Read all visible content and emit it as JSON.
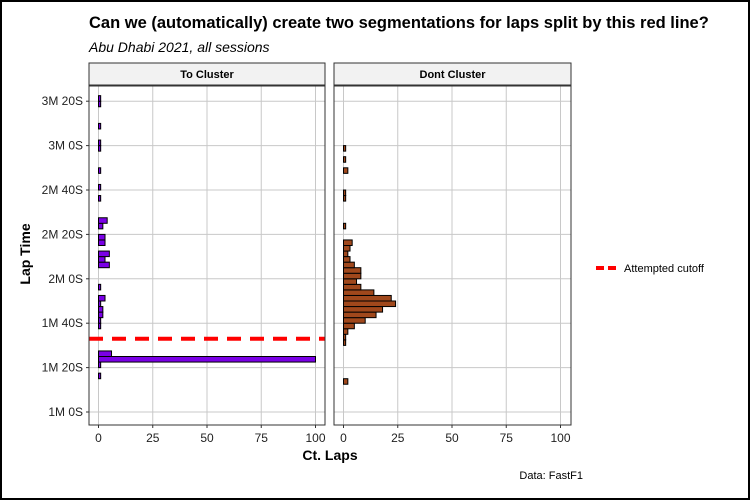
{
  "chart_data": {
    "type": "bar",
    "orientation": "horizontal histogram (faceted)",
    "title": "Can we (automatically) create two segmentations for laps split by this red line?",
    "subtitle": "Abu Dhabi 2021, all sessions",
    "xlabel": "Ct. Laps",
    "ylabel": "Lap Time",
    "caption": "Data: FastF1",
    "xlim": [
      0,
      100
    ],
    "x_ticks": [
      0,
      25,
      50,
      75,
      100
    ],
    "ylim_seconds": [
      60,
      215
    ],
    "y_ticks": [
      {
        "seconds": 60,
        "label": "1M 0S"
      },
      {
        "seconds": 80,
        "label": "1M 20S"
      },
      {
        "seconds": 100,
        "label": "1M 40S"
      },
      {
        "seconds": 120,
        "label": "2M 0S"
      },
      {
        "seconds": 140,
        "label": "2M 20S"
      },
      {
        "seconds": 160,
        "label": "2M 40S"
      },
      {
        "seconds": 180,
        "label": "3M 0S"
      },
      {
        "seconds": 200,
        "label": "3M 20S"
      }
    ],
    "bin_width_seconds": 2.5,
    "cutoff": {
      "seconds": 93,
      "label": "Attempted cutoff",
      "color": "#ff0000"
    },
    "legend_position": "right",
    "facets": [
      {
        "name": "To Cluster",
        "color": "#7a00e6",
        "bins": [
          {
            "start": 75,
            "count": 1
          },
          {
            "start": 80,
            "count": 1
          },
          {
            "start": 82.5,
            "count": 100
          },
          {
            "start": 85,
            "count": 6
          },
          {
            "start": 97.5,
            "count": 1
          },
          {
            "start": 100,
            "count": 1
          },
          {
            "start": 102.5,
            "count": 2
          },
          {
            "start": 105,
            "count": 2
          },
          {
            "start": 107.5,
            "count": 1
          },
          {
            "start": 110,
            "count": 3
          },
          {
            "start": 115,
            "count": 1
          },
          {
            "start": 125,
            "count": 5
          },
          {
            "start": 127.5,
            "count": 3
          },
          {
            "start": 130,
            "count": 5
          },
          {
            "start": 135,
            "count": 3
          },
          {
            "start": 137.5,
            "count": 3
          },
          {
            "start": 142.5,
            "count": 2
          },
          {
            "start": 145,
            "count": 4
          },
          {
            "start": 155,
            "count": 1
          },
          {
            "start": 160,
            "count": 1
          },
          {
            "start": 167.5,
            "count": 1
          },
          {
            "start": 177.5,
            "count": 1
          },
          {
            "start": 180,
            "count": 1
          },
          {
            "start": 187.5,
            "count": 1
          },
          {
            "start": 197.5,
            "count": 1
          },
          {
            "start": 200,
            "count": 1
          }
        ]
      },
      {
        "name": "Dont Cluster",
        "color": "#a0481c",
        "bins": [
          {
            "start": 72.5,
            "count": 2
          },
          {
            "start": 90,
            "count": 1
          },
          {
            "start": 92.5,
            "count": 1
          },
          {
            "start": 95,
            "count": 2
          },
          {
            "start": 97.5,
            "count": 5
          },
          {
            "start": 100,
            "count": 10
          },
          {
            "start": 102.5,
            "count": 15
          },
          {
            "start": 105,
            "count": 18
          },
          {
            "start": 107.5,
            "count": 24
          },
          {
            "start": 110,
            "count": 22
          },
          {
            "start": 112.5,
            "count": 14
          },
          {
            "start": 115,
            "count": 8
          },
          {
            "start": 117.5,
            "count": 6
          },
          {
            "start": 120,
            "count": 8
          },
          {
            "start": 122.5,
            "count": 8
          },
          {
            "start": 125,
            "count": 5
          },
          {
            "start": 127.5,
            "count": 3
          },
          {
            "start": 130,
            "count": 2
          },
          {
            "start": 132.5,
            "count": 3
          },
          {
            "start": 135,
            "count": 4
          },
          {
            "start": 142.5,
            "count": 1
          },
          {
            "start": 155,
            "count": 1
          },
          {
            "start": 157.5,
            "count": 1
          },
          {
            "start": 167.5,
            "count": 2
          },
          {
            "start": 172.5,
            "count": 1
          },
          {
            "start": 177.5,
            "count": 1
          }
        ]
      }
    ]
  }
}
